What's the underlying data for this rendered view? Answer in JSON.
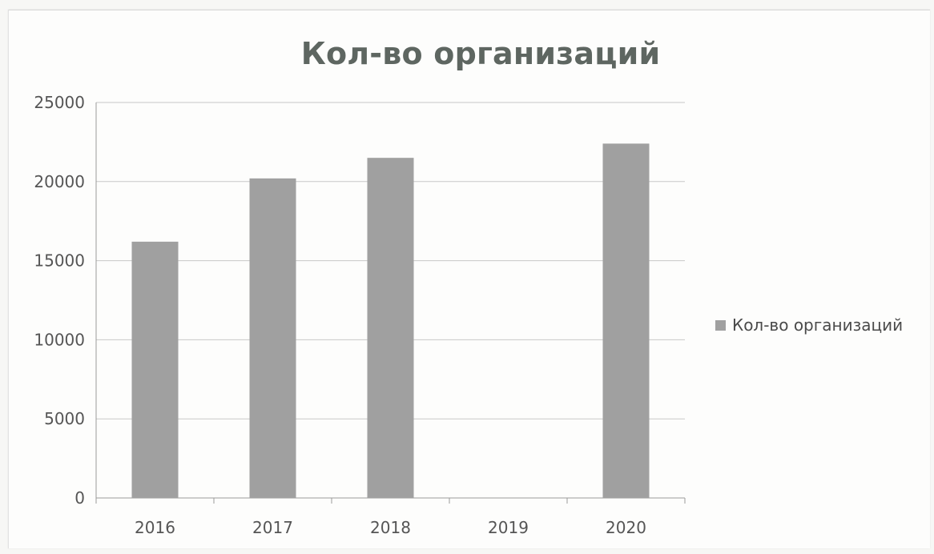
{
  "chart_data": {
    "type": "bar",
    "title": "Кол-во организаций",
    "categories": [
      "2016",
      "2017",
      "2018",
      "2019",
      "2020"
    ],
    "series": [
      {
        "name": "Кол-во организаций",
        "values": [
          16200,
          20200,
          21500,
          null,
          22400
        ]
      }
    ],
    "y_ticks": [
      "0",
      "5000",
      "10000",
      "15000",
      "20000",
      "25000"
    ],
    "ylim": [
      0,
      25000
    ],
    "grid": true,
    "legend_position": "right",
    "bar_color": "#a0a0a0",
    "gridline_color": "#c8c8c8"
  }
}
